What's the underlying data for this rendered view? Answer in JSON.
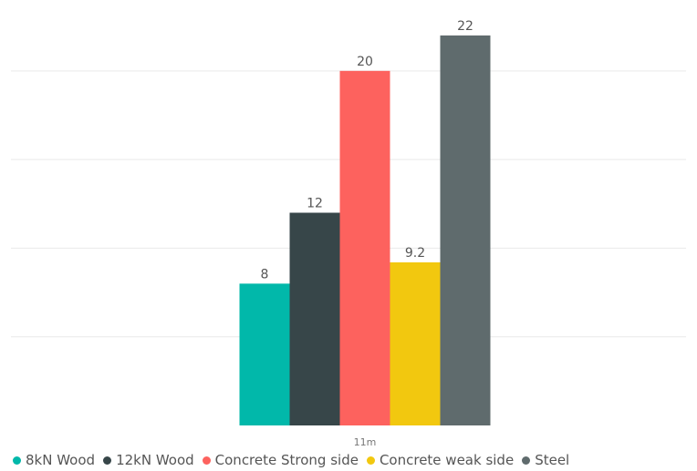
{
  "chart_data": {
    "type": "bar",
    "categories": [
      "11m"
    ],
    "series": [
      {
        "name": "8kN Wood",
        "values": [
          8
        ],
        "color": "#01B8AA"
      },
      {
        "name": "12kN Wood",
        "values": [
          12
        ],
        "color": "#374649"
      },
      {
        "name": "Concrete Strong side",
        "values": [
          20
        ],
        "color": "#FD625E"
      },
      {
        "name": "Concrete weak side",
        "values": [
          9.2
        ],
        "color": "#F2C80F"
      },
      {
        "name": "Steel",
        "values": [
          22
        ],
        "color": "#5F6B6D"
      }
    ],
    "data_labels": [
      "8",
      "12",
      "20",
      "9.2",
      "22"
    ],
    "ylim": [
      0,
      24
    ],
    "grid": true,
    "legend_position": "bottom-left"
  }
}
